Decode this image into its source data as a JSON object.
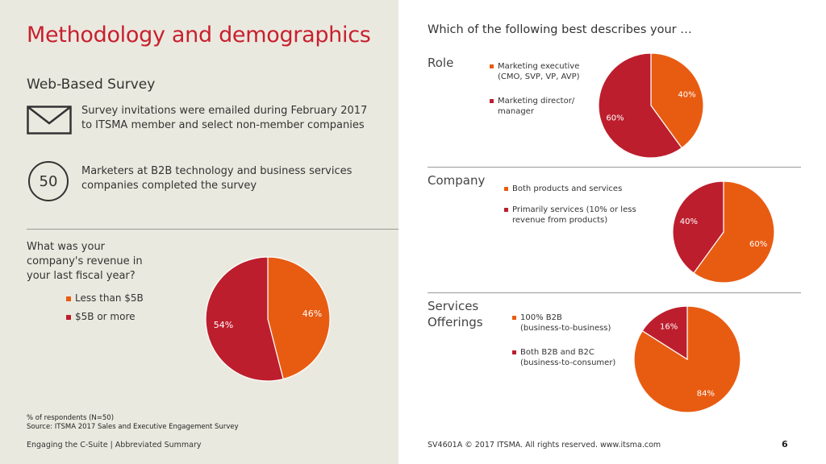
{
  "colors": {
    "orange": "#e85c12",
    "red": "#bd1e2d",
    "title_red": "#c8202f",
    "panel_bg": "#eae9df"
  },
  "left": {
    "title": "Methodology and demographics",
    "subtitle": "Web-Based Survey",
    "invite_icon": "envelope-icon",
    "invite_text_1": "Survey invitations were emailed during February 2017",
    "invite_text_2": "to ITSMA member and select non-member companies",
    "respondent_count": "50",
    "respondents_text_1": "Marketers at B2B technology and business services",
    "respondents_text_2": "companies completed the survey",
    "revenue_question_1": "What was your",
    "revenue_question_2": "company's revenue in",
    "revenue_question_3": "your last fiscal year?",
    "note_1": "% of respondents (N=50)",
    "note_2": "Source: ITSMA 2017 Sales and Executive Engagement Survey",
    "footer": "Engaging the C-Suite | Abbreviated Summary"
  },
  "right": {
    "heading": "Which of the following best describes your …",
    "footer": "SV4601A © 2017 ITSMA. All rights reserved.  www.itsma.com",
    "page_number": "6"
  },
  "chart_data": [
    {
      "id": "revenue",
      "type": "pie",
      "title": "What was your company's revenue in your last fiscal year?",
      "categories": [
        "Less than $5B",
        "$5B or more"
      ],
      "values": [
        46,
        54
      ],
      "labels": [
        "46%",
        "54%"
      ],
      "colors": [
        "#e85c12",
        "#bd1e2d"
      ]
    },
    {
      "id": "role",
      "type": "pie",
      "title": "Role",
      "categories": [
        "Marketing executive (CMO, SVP, VP, AVP)",
        "Marketing director/ manager"
      ],
      "legend_lines": [
        [
          "Marketing executive",
          "(CMO, SVP, VP, AVP)"
        ],
        [
          "Marketing director/",
          "manager"
        ]
      ],
      "values": [
        40,
        60
      ],
      "labels": [
        "40%",
        "60%"
      ],
      "colors": [
        "#e85c12",
        "#bd1e2d"
      ]
    },
    {
      "id": "company",
      "type": "pie",
      "title": "Company",
      "categories": [
        "Both products and services",
        "Primarily services (10% or less revenue from products)"
      ],
      "legend_lines": [
        [
          "Both products and services"
        ],
        [
          "Primarily services (10% or less",
          "revenue from products)"
        ]
      ],
      "values": [
        60,
        40
      ],
      "labels": [
        "60%",
        "40%"
      ],
      "colors": [
        "#e85c12",
        "#bd1e2d"
      ]
    },
    {
      "id": "services",
      "type": "pie",
      "title_lines": [
        "Services",
        "Offerings"
      ],
      "categories": [
        "100% B2B (business-to-business)",
        "Both B2B and B2C (business-to-consumer)"
      ],
      "legend_lines": [
        [
          "100% B2B",
          "(business-to-business)"
        ],
        [
          "Both B2B and B2C",
          "(business-to-consumer)"
        ]
      ],
      "values": [
        84,
        16
      ],
      "labels": [
        "84%",
        "16%"
      ],
      "colors": [
        "#e85c12",
        "#bd1e2d"
      ]
    }
  ]
}
